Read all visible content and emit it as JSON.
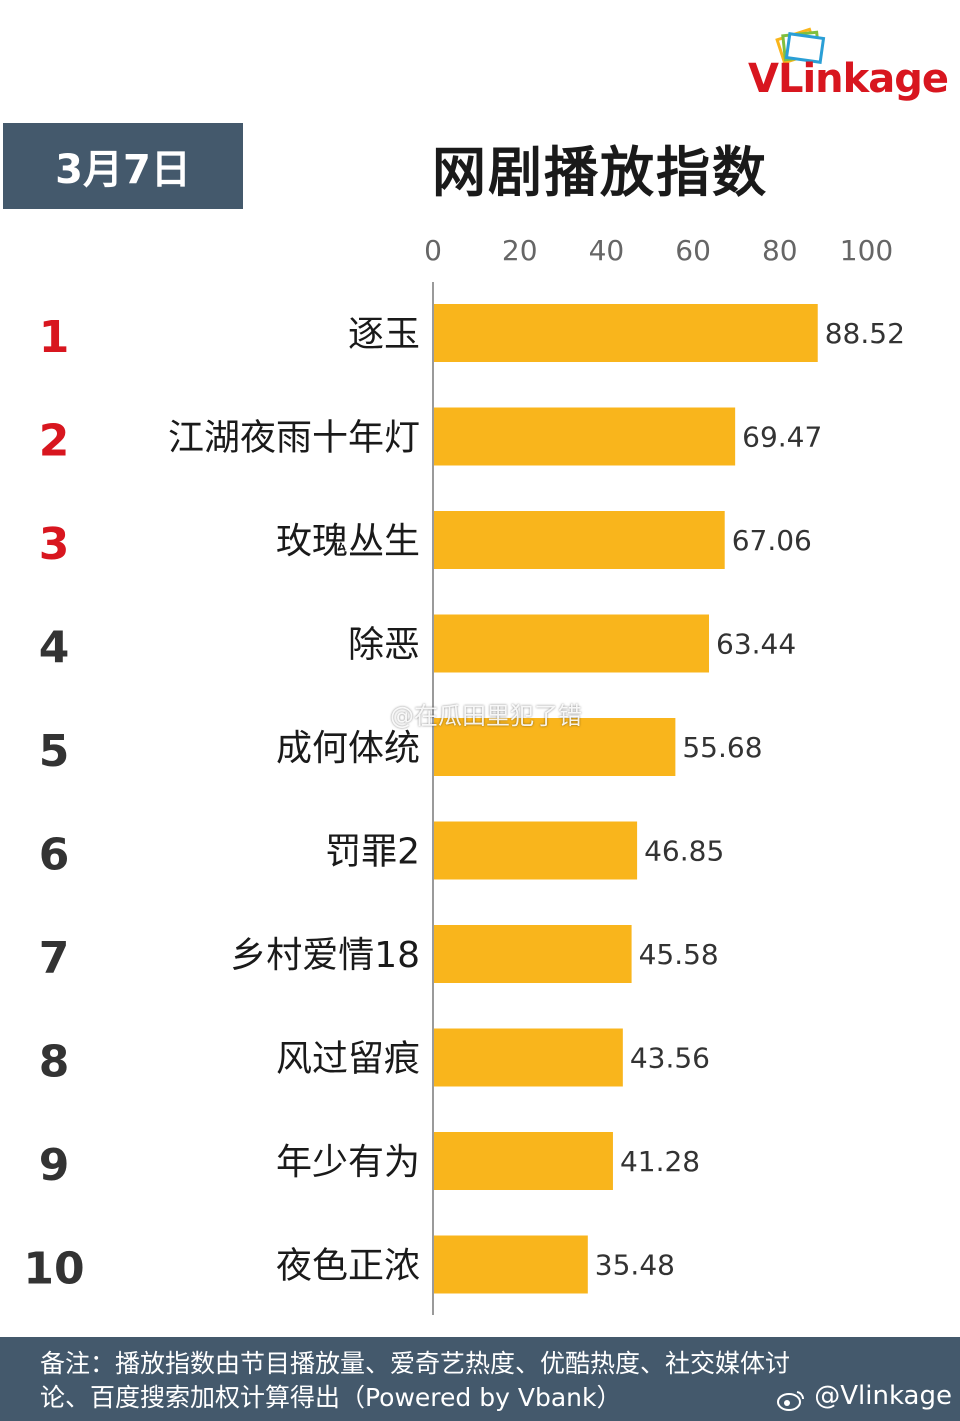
{
  "header": {
    "date": "3月7日",
    "title": "网剧播放指数",
    "logo_text": "VLinkage"
  },
  "colors": {
    "bar": "#F9B51C",
    "header_bg": "#44596C",
    "rank_top": "#D8161F",
    "rank_other": "#333333",
    "logo_red": "#D8161F",
    "footer_bg": "#44596C"
  },
  "chart_data": {
    "type": "bar",
    "orientation": "horizontal",
    "title": "网剧播放指数",
    "xlabel": "",
    "ylabel": "",
    "xlim": [
      0,
      100
    ],
    "x_ticks": [
      "0",
      "20",
      "40",
      "60",
      "80",
      "100"
    ],
    "tick_values": [
      0,
      20,
      40,
      60,
      80,
      100
    ],
    "grid": false,
    "ranks": [
      "1",
      "2",
      "3",
      "4",
      "5",
      "6",
      "7",
      "8",
      "9",
      "10"
    ],
    "categories": [
      "逐玉",
      "江湖夜雨十年灯",
      "玫瑰丛生",
      "除恶",
      "成何体统",
      "罚罪2",
      "乡村爱情18",
      "风过留痕",
      "年少有为",
      "夜色正浓"
    ],
    "values": [
      88.52,
      69.47,
      67.06,
      63.44,
      55.68,
      46.85,
      45.58,
      43.56,
      41.28,
      35.48
    ],
    "value_labels": [
      "88.52",
      "69.47",
      "67.06",
      "63.44",
      "55.68",
      "46.85",
      "45.58",
      "43.56",
      "41.28",
      "35.48"
    ]
  },
  "footer": {
    "line1": "备注：播放指数由节目播放量、爱奇艺热度、优酷热度、社交媒体讨",
    "line2": "论、百度搜索加权计算得出（Powered by Vbank）",
    "handle": "@Vlinkage"
  },
  "watermark": "@在瓜田里犯了错"
}
